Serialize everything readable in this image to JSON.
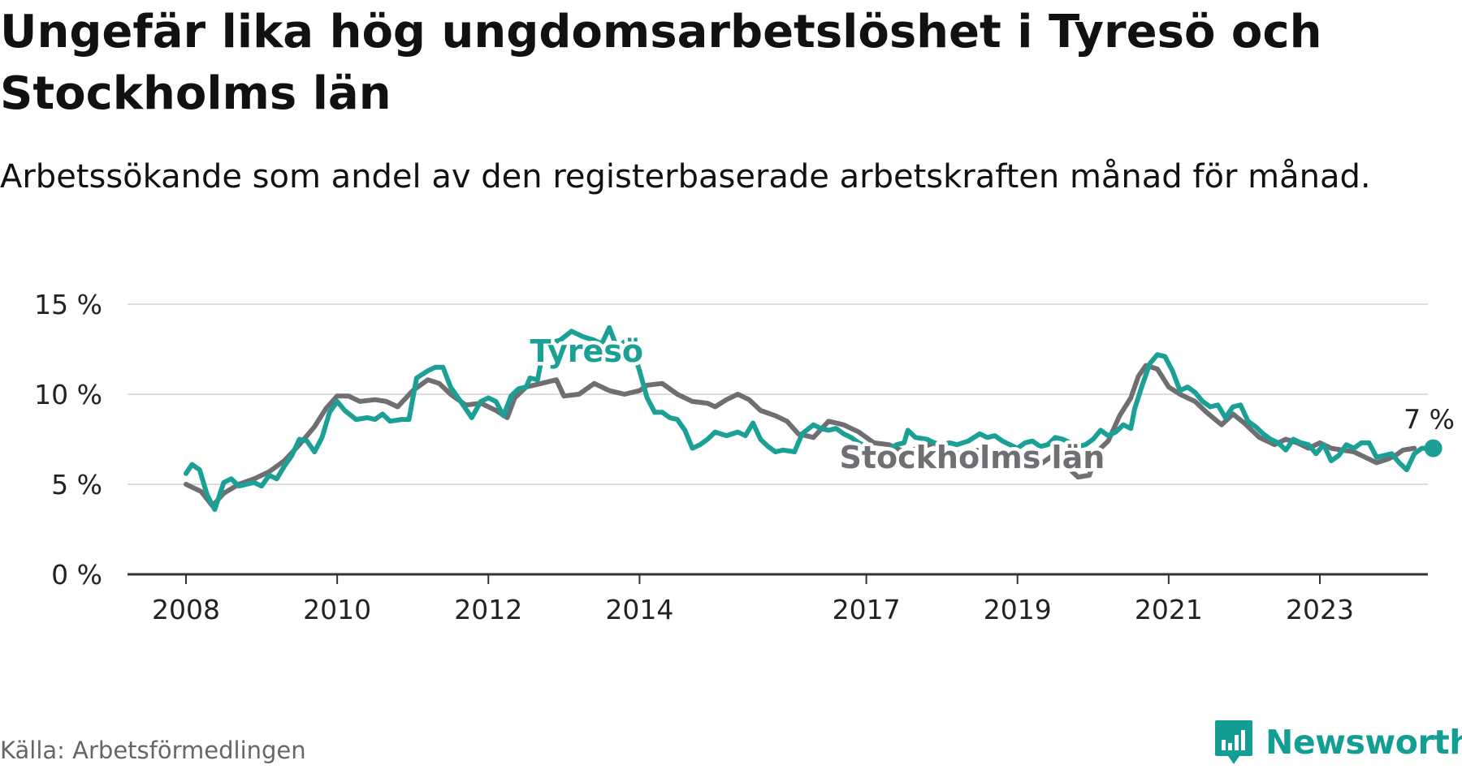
{
  "title": "Ungefär lika hög ungdomsarbetslöshet i Tyresö och Stockholms län",
  "subtitle": "Arbetssökande som andel av den registerbaserade arbetskraften månad för månad.",
  "source": "Källa: Arbetsförmedlingen",
  "brand": "Newsworthy",
  "colors": {
    "tyreso": "#1aa095",
    "stockholm": "#6f6f73",
    "grid": "#dddddd",
    "axis": "#333333",
    "brand": "#139e93"
  },
  "chart_data": {
    "type": "line",
    "x_unit": "year",
    "xlim": [
      2007.8,
      2024.5
    ],
    "ylim": [
      0,
      15
    ],
    "y_ticks": [
      0,
      5,
      10,
      15
    ],
    "y_tick_labels": [
      "0 %",
      "5 %",
      "10 %",
      "15 %"
    ],
    "x_ticks": [
      2008,
      2010,
      2012,
      2014,
      2017,
      2019,
      2021,
      2023
    ],
    "x_tick_labels": [
      "2008",
      "2010",
      "2012",
      "2014",
      "2017",
      "2019",
      "2021",
      "2023"
    ],
    "end_label": "7 %",
    "series": [
      {
        "name": "Stockholms län",
        "label": "Stockholms län",
        "color": "#6f6f73",
        "points": [
          [
            2008.0,
            5.0
          ],
          [
            2008.2,
            4.6
          ],
          [
            2008.35,
            3.8
          ],
          [
            2008.5,
            4.5
          ],
          [
            2008.7,
            5.0
          ],
          [
            2008.9,
            5.3
          ],
          [
            2009.1,
            5.7
          ],
          [
            2009.3,
            6.3
          ],
          [
            2009.5,
            7.2
          ],
          [
            2009.7,
            8.2
          ],
          [
            2009.85,
            9.2
          ],
          [
            2010.0,
            9.9
          ],
          [
            2010.15,
            9.9
          ],
          [
            2010.3,
            9.6
          ],
          [
            2010.5,
            9.7
          ],
          [
            2010.65,
            9.6
          ],
          [
            2010.8,
            9.3
          ],
          [
            2011.0,
            10.2
          ],
          [
            2011.2,
            10.8
          ],
          [
            2011.35,
            10.6
          ],
          [
            2011.5,
            10.0
          ],
          [
            2011.7,
            9.4
          ],
          [
            2011.9,
            9.5
          ],
          [
            2012.1,
            9.1
          ],
          [
            2012.25,
            8.7
          ],
          [
            2012.35,
            9.8
          ],
          [
            2012.5,
            10.4
          ],
          [
            2012.7,
            10.6
          ],
          [
            2012.9,
            10.8
          ],
          [
            2013.0,
            9.9
          ],
          [
            2013.2,
            10.0
          ],
          [
            2013.4,
            10.6
          ],
          [
            2013.6,
            10.2
          ],
          [
            2013.8,
            10.0
          ],
          [
            2014.0,
            10.2
          ],
          [
            2014.1,
            10.5
          ],
          [
            2014.3,
            10.6
          ],
          [
            2014.5,
            10.0
          ],
          [
            2014.7,
            9.6
          ],
          [
            2014.9,
            9.5
          ],
          [
            2015.0,
            9.3
          ],
          [
            2015.15,
            9.7
          ],
          [
            2015.3,
            10.0
          ],
          [
            2015.45,
            9.7
          ],
          [
            2015.6,
            9.1
          ],
          [
            2015.8,
            8.8
          ],
          [
            2015.95,
            8.5
          ],
          [
            2016.1,
            7.8
          ],
          [
            2016.3,
            7.6
          ],
          [
            2016.5,
            8.5
          ],
          [
            2016.7,
            8.3
          ],
          [
            2016.9,
            7.9
          ],
          [
            2017.1,
            7.3
          ],
          [
            2017.3,
            7.2
          ],
          [
            2017.5,
            6.8
          ],
          [
            2017.7,
            7.0
          ],
          [
            2017.9,
            7.3
          ],
          [
            2018.1,
            6.6
          ],
          [
            2018.3,
            6.8
          ],
          [
            2018.5,
            6.9
          ],
          [
            2018.7,
            6.5
          ],
          [
            2018.9,
            6.4
          ],
          [
            2019.1,
            6.3
          ],
          [
            2019.3,
            6.1
          ],
          [
            2019.5,
            6.7
          ],
          [
            2019.65,
            6.0
          ],
          [
            2019.8,
            5.4
          ],
          [
            2019.95,
            5.5
          ],
          [
            2020.05,
            6.8
          ],
          [
            2020.2,
            7.4
          ],
          [
            2020.35,
            8.8
          ],
          [
            2020.5,
            9.8
          ],
          [
            2020.6,
            11.0
          ],
          [
            2020.7,
            11.6
          ],
          [
            2020.85,
            11.4
          ],
          [
            2021.0,
            10.4
          ],
          [
            2021.15,
            10.0
          ],
          [
            2021.35,
            9.6
          ],
          [
            2021.5,
            9.0
          ],
          [
            2021.7,
            8.3
          ],
          [
            2021.85,
            8.9
          ],
          [
            2022.0,
            8.4
          ],
          [
            2022.2,
            7.6
          ],
          [
            2022.4,
            7.2
          ],
          [
            2022.55,
            7.5
          ],
          [
            2022.7,
            7.3
          ],
          [
            2022.85,
            7.0
          ],
          [
            2023.0,
            7.3
          ],
          [
            2023.15,
            7.0
          ],
          [
            2023.3,
            6.9
          ],
          [
            2023.45,
            6.8
          ],
          [
            2023.6,
            6.5
          ],
          [
            2023.75,
            6.2
          ],
          [
            2023.9,
            6.4
          ],
          [
            2024.0,
            6.6
          ],
          [
            2024.1,
            6.9
          ],
          [
            2024.25,
            7.0
          ]
        ]
      },
      {
        "name": "Tyresö",
        "label": "Tyresö",
        "color": "#1aa095",
        "points": [
          [
            2008.0,
            5.6
          ],
          [
            2008.08,
            6.1
          ],
          [
            2008.18,
            5.8
          ],
          [
            2008.28,
            4.4
          ],
          [
            2008.38,
            3.6
          ],
          [
            2008.5,
            5.1
          ],
          [
            2008.6,
            5.3
          ],
          [
            2008.7,
            4.9
          ],
          [
            2008.8,
            5.0
          ],
          [
            2008.9,
            5.1
          ],
          [
            2009.0,
            4.9
          ],
          [
            2009.1,
            5.5
          ],
          [
            2009.2,
            5.3
          ],
          [
            2009.3,
            6.0
          ],
          [
            2009.4,
            6.6
          ],
          [
            2009.5,
            7.5
          ],
          [
            2009.6,
            7.4
          ],
          [
            2009.7,
            6.8
          ],
          [
            2009.8,
            7.6
          ],
          [
            2009.9,
            9.0
          ],
          [
            2010.0,
            9.6
          ],
          [
            2010.1,
            9.1
          ],
          [
            2010.25,
            8.6
          ],
          [
            2010.4,
            8.7
          ],
          [
            2010.5,
            8.6
          ],
          [
            2010.6,
            8.9
          ],
          [
            2010.7,
            8.5
          ],
          [
            2010.85,
            8.6
          ],
          [
            2010.95,
            8.6
          ],
          [
            2011.05,
            10.9
          ],
          [
            2011.2,
            11.3
          ],
          [
            2011.3,
            11.5
          ],
          [
            2011.4,
            11.5
          ],
          [
            2011.5,
            10.4
          ],
          [
            2011.65,
            9.5
          ],
          [
            2011.78,
            8.7
          ],
          [
            2011.9,
            9.6
          ],
          [
            2012.0,
            9.8
          ],
          [
            2012.1,
            9.6
          ],
          [
            2012.2,
            8.8
          ],
          [
            2012.3,
            9.9
          ],
          [
            2012.4,
            10.3
          ],
          [
            2012.5,
            10.4
          ],
          [
            2012.55,
            10.9
          ],
          [
            2012.65,
            10.8
          ],
          [
            2012.75,
            12.9
          ],
          [
            2012.85,
            12.9
          ],
          [
            2012.95,
            13.0
          ],
          [
            2013.1,
            13.5
          ],
          [
            2013.25,
            13.2
          ],
          [
            2013.4,
            13.0
          ],
          [
            2013.5,
            12.8
          ],
          [
            2013.6,
            13.7
          ],
          [
            2013.7,
            12.6
          ],
          [
            2013.8,
            12.9
          ],
          [
            2013.9,
            12.6
          ],
          [
            2014.0,
            11.3
          ],
          [
            2014.1,
            9.8
          ],
          [
            2014.2,
            9.0
          ],
          [
            2014.3,
            9.0
          ],
          [
            2014.4,
            8.7
          ],
          [
            2014.5,
            8.6
          ],
          [
            2014.6,
            8.0
          ],
          [
            2014.7,
            7.0
          ],
          [
            2014.8,
            7.2
          ],
          [
            2014.9,
            7.5
          ],
          [
            2015.0,
            7.9
          ],
          [
            2015.15,
            7.7
          ],
          [
            2015.3,
            7.9
          ],
          [
            2015.4,
            7.7
          ],
          [
            2015.5,
            8.4
          ],
          [
            2015.6,
            7.5
          ],
          [
            2015.7,
            7.1
          ],
          [
            2015.8,
            6.8
          ],
          [
            2015.9,
            6.9
          ],
          [
            2016.05,
            6.8
          ],
          [
            2016.15,
            7.8
          ],
          [
            2016.3,
            8.3
          ],
          [
            2016.4,
            8.1
          ],
          [
            2016.5,
            8.0
          ],
          [
            2016.6,
            8.1
          ],
          [
            2016.7,
            7.8
          ],
          [
            2016.8,
            7.6
          ],
          [
            2016.9,
            7.3
          ],
          [
            2017.0,
            7.1
          ],
          [
            2017.1,
            6.5
          ],
          [
            2017.2,
            6.4
          ],
          [
            2017.3,
            6.9
          ],
          [
            2017.4,
            7.2
          ],
          [
            2017.5,
            7.3
          ],
          [
            2017.55,
            8.0
          ],
          [
            2017.65,
            7.6
          ],
          [
            2017.8,
            7.5
          ],
          [
            2017.9,
            7.3
          ],
          [
            2018.0,
            7.2
          ],
          [
            2018.1,
            7.3
          ],
          [
            2018.2,
            7.2
          ],
          [
            2018.35,
            7.4
          ],
          [
            2018.5,
            7.8
          ],
          [
            2018.6,
            7.6
          ],
          [
            2018.7,
            7.7
          ],
          [
            2018.8,
            7.4
          ],
          [
            2018.9,
            7.2
          ],
          [
            2019.0,
            7.0
          ],
          [
            2019.1,
            7.3
          ],
          [
            2019.2,
            7.4
          ],
          [
            2019.3,
            7.1
          ],
          [
            2019.4,
            7.2
          ],
          [
            2019.5,
            7.6
          ],
          [
            2019.6,
            7.5
          ],
          [
            2019.7,
            7.3
          ],
          [
            2019.8,
            7.1
          ],
          [
            2019.9,
            7.2
          ],
          [
            2020.0,
            7.5
          ],
          [
            2020.1,
            8.0
          ],
          [
            2020.2,
            7.7
          ],
          [
            2020.3,
            7.9
          ],
          [
            2020.4,
            8.3
          ],
          [
            2020.5,
            8.1
          ],
          [
            2020.55,
            9.2
          ],
          [
            2020.65,
            10.5
          ],
          [
            2020.75,
            11.7
          ],
          [
            2020.85,
            12.2
          ],
          [
            2020.95,
            12.1
          ],
          [
            2021.05,
            11.3
          ],
          [
            2021.15,
            10.2
          ],
          [
            2021.25,
            10.4
          ],
          [
            2021.35,
            10.1
          ],
          [
            2021.45,
            9.6
          ],
          [
            2021.55,
            9.3
          ],
          [
            2021.65,
            9.4
          ],
          [
            2021.75,
            8.7
          ],
          [
            2021.85,
            9.3
          ],
          [
            2021.95,
            9.4
          ],
          [
            2022.05,
            8.5
          ],
          [
            2022.15,
            8.2
          ],
          [
            2022.25,
            7.8
          ],
          [
            2022.35,
            7.5
          ],
          [
            2022.45,
            7.3
          ],
          [
            2022.55,
            6.9
          ],
          [
            2022.65,
            7.5
          ],
          [
            2022.75,
            7.3
          ],
          [
            2022.85,
            7.2
          ],
          [
            2022.95,
            6.7
          ],
          [
            2023.05,
            7.2
          ],
          [
            2023.15,
            6.3
          ],
          [
            2023.25,
            6.6
          ],
          [
            2023.35,
            7.2
          ],
          [
            2023.45,
            7.0
          ],
          [
            2023.55,
            7.3
          ],
          [
            2023.65,
            7.3
          ],
          [
            2023.75,
            6.5
          ],
          [
            2023.85,
            6.6
          ],
          [
            2023.95,
            6.7
          ],
          [
            2024.05,
            6.2
          ],
          [
            2024.15,
            5.8
          ],
          [
            2024.25,
            6.7
          ],
          [
            2024.35,
            7.0
          ],
          [
            2024.5,
            7.0
          ]
        ]
      }
    ]
  }
}
